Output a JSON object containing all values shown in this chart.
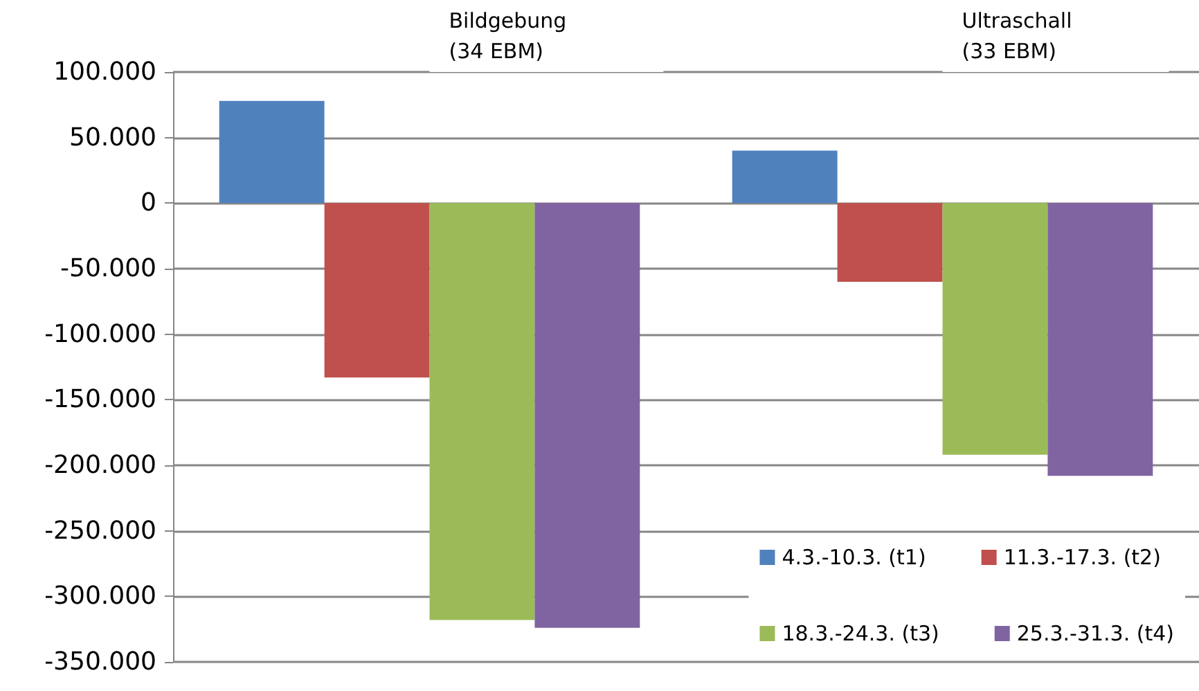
{
  "chart_data": {
    "type": "bar",
    "categories": [
      "Bildgebung\n(34 EBM)",
      "Ultraschall\n(33 EBM)"
    ],
    "series": [
      {
        "name": "4.3.-10.3. (t1)",
        "color": "#4f81bd",
        "values": [
          78000,
          40000
        ]
      },
      {
        "name": "11.3.-17.3. (t2)",
        "color": "#c0504d",
        "values": [
          -133000,
          -60000
        ]
      },
      {
        "name": "18.3.-24.3. (t3)",
        "color": "#9bbb59",
        "values": [
          -318000,
          -192000
        ]
      },
      {
        "name": "25.3.-31.3. (t4)",
        "color": "#8064a2",
        "values": [
          -324000,
          -208000
        ]
      }
    ],
    "ylim": [
      -350000,
      100000
    ],
    "yticks": [
      {
        "value": -350000,
        "label": "-350.000"
      },
      {
        "value": -300000,
        "label": "-300.000"
      },
      {
        "value": -250000,
        "label": "-250.000"
      },
      {
        "value": -200000,
        "label": "-200.000"
      },
      {
        "value": -150000,
        "label": "-150.000"
      },
      {
        "value": -100000,
        "label": "-100.000"
      },
      {
        "value": -50000,
        "label": "-50.000"
      },
      {
        "value": 0,
        "label": "0"
      },
      {
        "value": 50000,
        "label": "50.000"
      },
      {
        "value": 100000,
        "label": "100.000"
      }
    ],
    "grid": "y",
    "legend": "bottom right"
  }
}
